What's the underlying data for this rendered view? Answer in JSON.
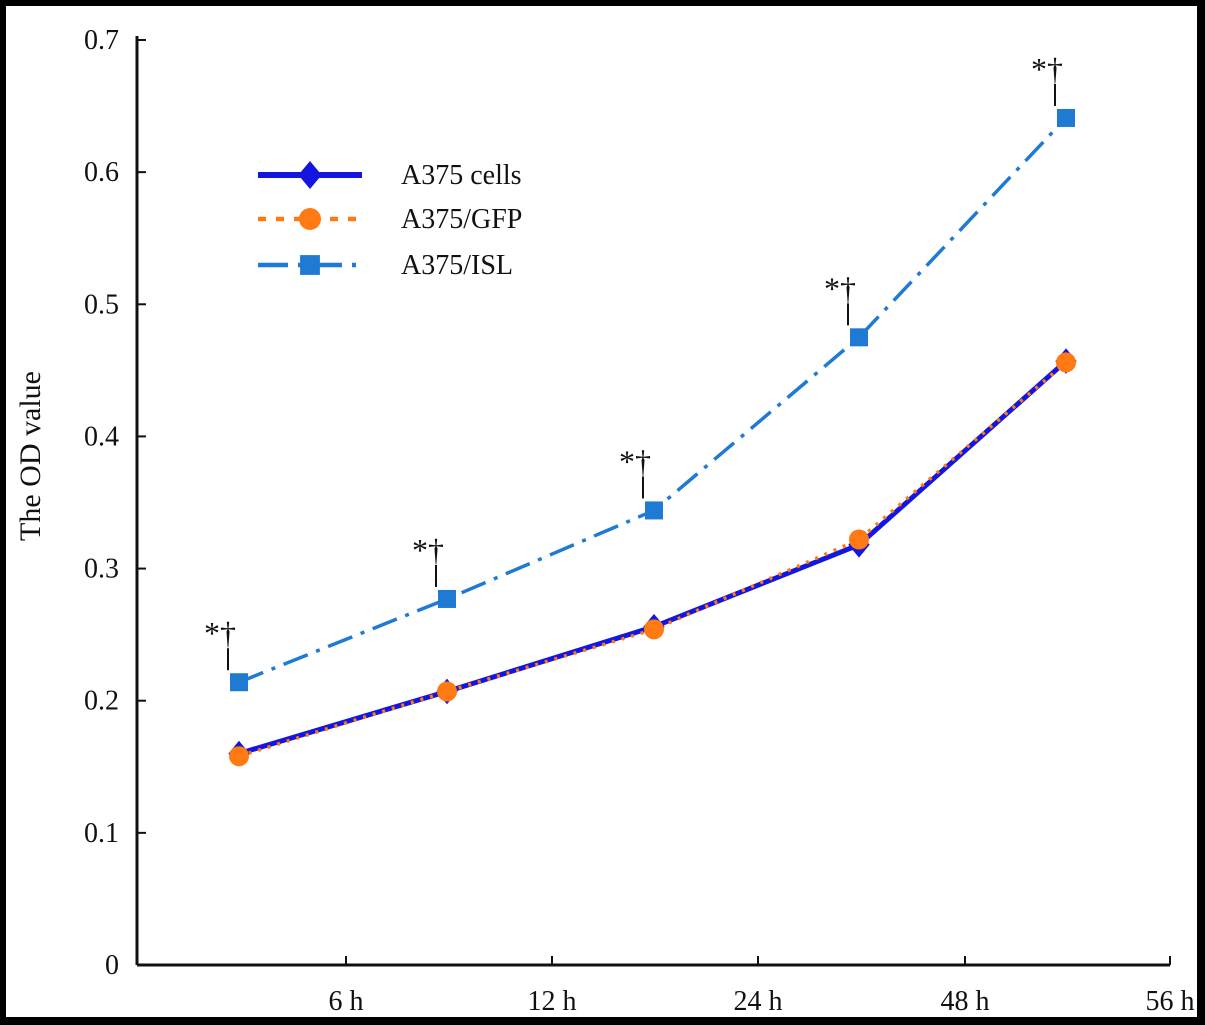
{
  "chart_data": {
    "type": "line",
    "ylabel": "The OD value",
    "xlabel": "",
    "ylim": [
      0,
      0.7
    ],
    "yticks": [
      "0",
      "0.1",
      "0.2",
      "0.3",
      "0.4",
      "0.5",
      "0.6",
      "0.7"
    ],
    "xticks": [
      "6 h",
      "12 h",
      "24 h",
      "48 h",
      "56 h"
    ],
    "x": [
      1,
      2,
      3,
      4,
      5
    ],
    "legend_position": "top-left",
    "grid": false,
    "series": [
      {
        "name": "A375 cells",
        "values": [
          0.16,
          0.207,
          0.256,
          0.318,
          0.457
        ],
        "color": "#1515e0",
        "marker": "diamond",
        "line": "solid"
      },
      {
        "name": "A375/GFP",
        "values": [
          0.158,
          0.207,
          0.254,
          0.322,
          0.456
        ],
        "color": "#ff7a12",
        "marker": "circle",
        "line": "dotted"
      },
      {
        "name": "A375/ISL",
        "values": [
          0.214,
          0.277,
          0.344,
          0.475,
          0.641
        ],
        "color": "#1f7ad4",
        "marker": "square",
        "line": "dashdot"
      }
    ],
    "annotations": [
      {
        "series": "A375/ISL",
        "point": 0,
        "text": "*†"
      },
      {
        "series": "A375/ISL",
        "point": 1,
        "text": "*†"
      },
      {
        "series": "A375/ISL",
        "point": 2,
        "text": "*†"
      },
      {
        "series": "A375/ISL",
        "point": 3,
        "text": "*†"
      },
      {
        "series": "A375/ISL",
        "point": 4,
        "text": "*†"
      }
    ]
  }
}
